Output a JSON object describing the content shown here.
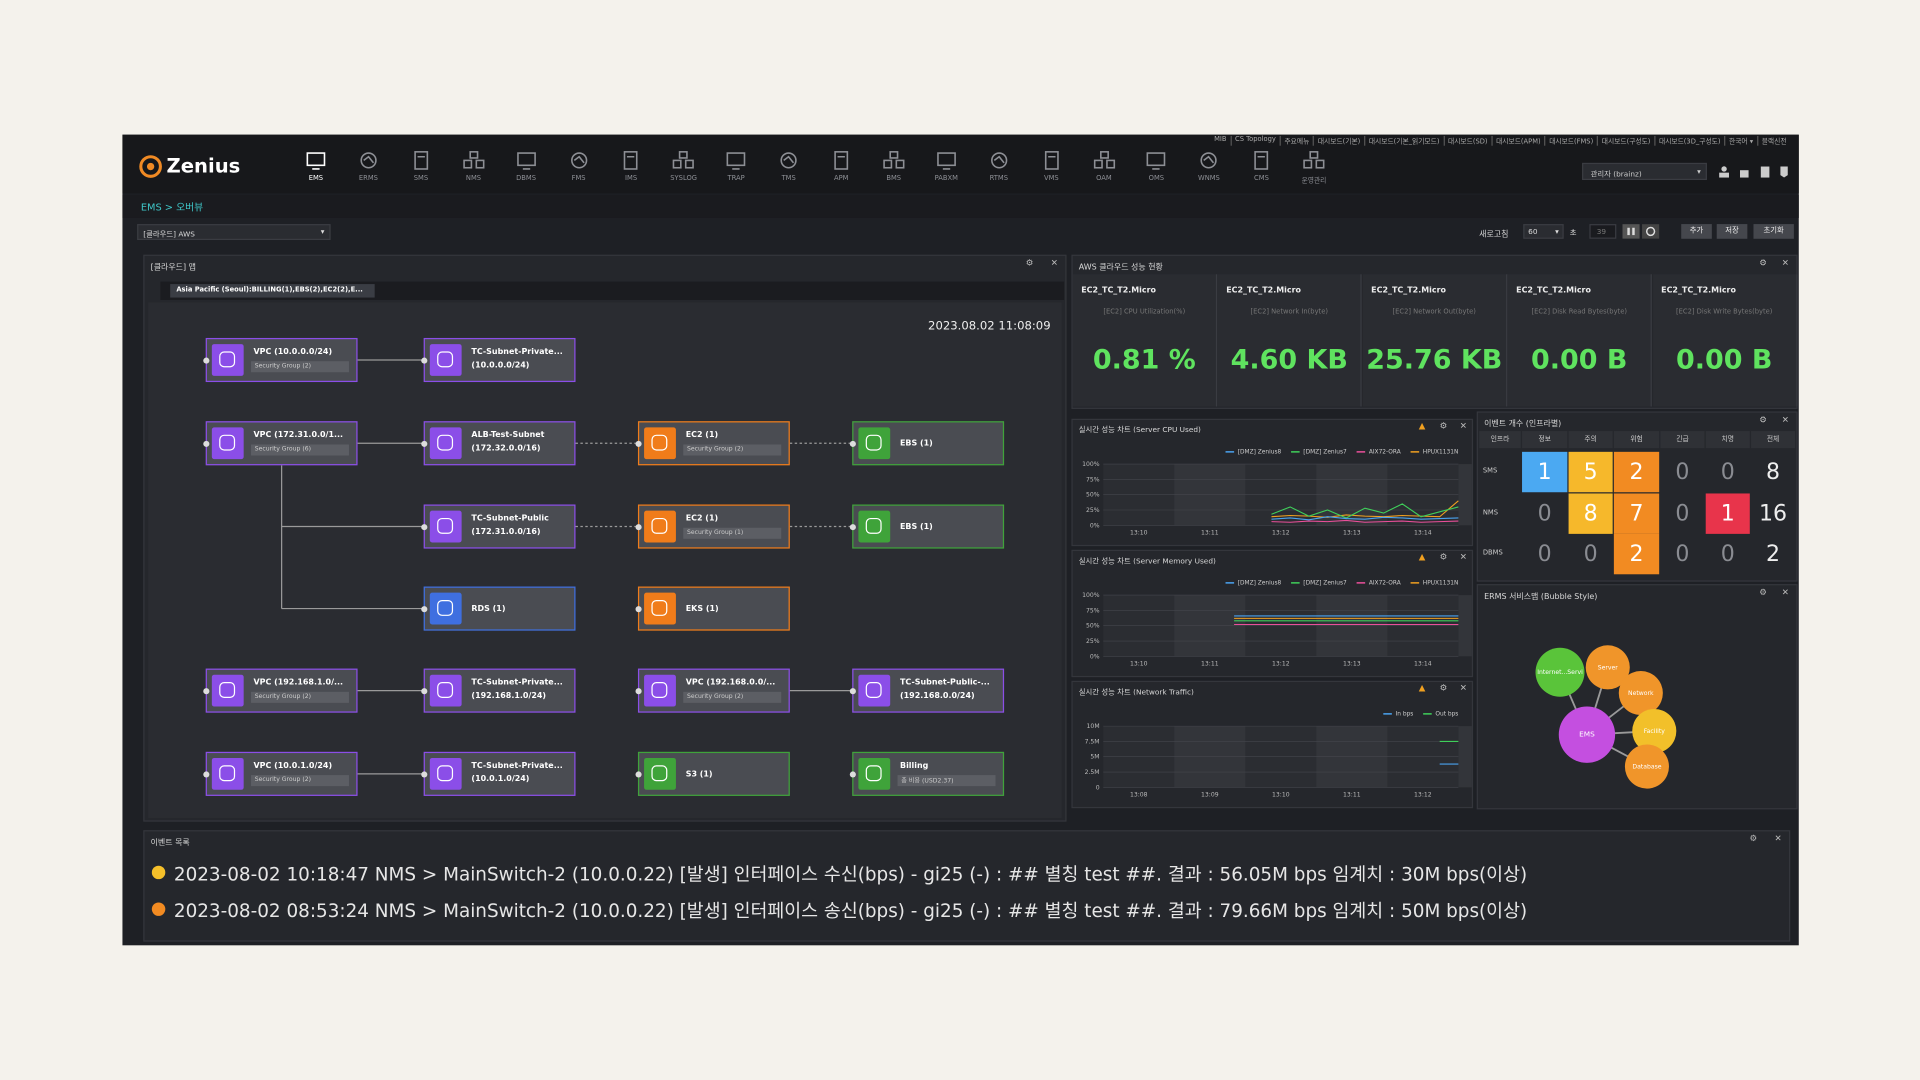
{
  "header": {
    "logo": "Zenius",
    "top_links": [
      "MIB",
      "CS Topology",
      "주요메뉴",
      "대시보드(기본)",
      "대시보드(기본_읽기모드)",
      "대시보드(SD)",
      "대시보드(APM)",
      "대시보드(FMS)",
      "대시보드(구성도)",
      "대시보드(3D_구성도)",
      "한국어 ▾",
      "블랙신전"
    ],
    "nav": [
      "EMS",
      "ERMS",
      "SMS",
      "NMS",
      "DBMS",
      "FMS",
      "IMS",
      "SYSLOG",
      "TRAP",
      "TMS",
      "APM",
      "BMS",
      "PABXM",
      "RTMS",
      "VMS",
      "OAM",
      "OMS",
      "WNMS",
      "CMS",
      "운영관리"
    ],
    "user": "관리자 (brainz)"
  },
  "breadcrumb": "EMS > 오버뷰",
  "toolbar": {
    "group_select": "[클라우드] AWS",
    "refresh_label": "새로고침",
    "interval": "60",
    "unit": "초",
    "countdown": "39",
    "buttons": [
      "추가",
      "저장",
      "초기화"
    ]
  },
  "map": {
    "title": "[클라우드] 맵",
    "region": "Asia Pacific (Seoul):BILLING(1),EBS(2),EC2(2),E...",
    "timestamp": "2023.08.02 11:08:09",
    "nodes": [
      {
        "label": "VPC (10.0.0.0/24)",
        "sub": "Security Group (2)",
        "color": "#8b4ee8"
      },
      {
        "label": "TC-Subnet-Private...",
        "detail": "(10.0.0.0/24)",
        "color": "#8b4ee8"
      },
      {
        "label": "VPC (172.31.0.0/1...",
        "sub": "Security Group (6)",
        "color": "#8b4ee8"
      },
      {
        "label": "ALB-Test-Subnet",
        "detail": "(172.32.0.0/16)",
        "color": "#8b4ee8"
      },
      {
        "label": "EC2 (1)",
        "sub": "Security Group (2)",
        "color": "#f07c1a"
      },
      {
        "label": "EBS (1)",
        "color": "#3fa33a"
      },
      {
        "label": "TC-Subnet-Public",
        "detail": "(172.31.0.0/16)",
        "color": "#8b4ee8"
      },
      {
        "label": "EC2 (1)",
        "sub": "Security Group (1)",
        "color": "#f07c1a"
      },
      {
        "label": "EBS (1)",
        "color": "#3fa33a"
      },
      {
        "label": "RDS (1)",
        "color": "#3f6fe0"
      },
      {
        "label": "EKS (1)",
        "color": "#f07c1a"
      },
      {
        "label": "VPC (192.168.1.0/...",
        "sub": "Security Group (2)",
        "color": "#8b4ee8"
      },
      {
        "label": "TC-Subnet-Private...",
        "detail": "(192.168.1.0/24)",
        "color": "#8b4ee8"
      },
      {
        "label": "VPC (192.168.0.0/...",
        "sub": "Security Group (2)",
        "color": "#8b4ee8"
      },
      {
        "label": "TC-Subnet-Public-...",
        "detail": "(192.168.0.0/24)",
        "color": "#8b4ee8"
      },
      {
        "label": "VPC (10.0.1.0/24)",
        "sub": "Security Group (2)",
        "color": "#8b4ee8"
      },
      {
        "label": "TC-Subnet-Private...",
        "detail": "(10.0.1.0/24)",
        "color": "#8b4ee8"
      },
      {
        "label": "S3 (1)",
        "color": "#3fa33a"
      },
      {
        "label": "Billing",
        "sub": "총 비용 (USD2.37)",
        "color": "#3fa33a"
      }
    ]
  },
  "aws": {
    "title": "AWS 클라우드 성능 현황",
    "cards": [
      {
        "name": "EC2_TC_T2.Micro",
        "metric": "[EC2] CPU Utilization(%)",
        "value": "0.81 %"
      },
      {
        "name": "EC2_TC_T2.Micro",
        "metric": "[EC2] Network In(byte)",
        "value": "4.60 KB"
      },
      {
        "name": "EC2_TC_T2.Micro",
        "metric": "[EC2] Network Out(byte)",
        "value": "25.76 KB"
      },
      {
        "name": "EC2_TC_T2.Micro",
        "metric": "[EC2] Disk Read Bytes(byte)",
        "value": "0.00 B"
      },
      {
        "name": "EC2_TC_T2.Micro",
        "metric": "[EC2] Disk Write Bytes(byte)",
        "value": "0.00 B"
      }
    ]
  },
  "chart_data": [
    {
      "type": "line",
      "title": "실시간 성능 차트 (Server CPU Used)",
      "ylim": [
        0,
        100
      ],
      "yticks": [
        {
          "value": 0,
          "label": "0%"
        },
        {
          "value": 25,
          "label": "25%"
        },
        {
          "value": 50,
          "label": "50%"
        },
        {
          "value": 75,
          "label": "75%"
        },
        {
          "value": 100,
          "label": "100%"
        }
      ],
      "xticks": [
        "13:10",
        "13:11",
        "13:12",
        "13:13",
        "13:14"
      ],
      "series": [
        {
          "name": "[DMZ] Zenius8",
          "color": "#4aa3f0",
          "values": [
            null,
            null,
            null,
            null,
            null,
            null,
            null,
            null,
            null,
            10,
            12,
            9,
            14,
            11,
            10,
            13,
            12,
            10,
            11,
            12
          ]
        },
        {
          "name": "[DMZ] Zenius7",
          "color": "#3fcf5a",
          "values": [
            null,
            null,
            null,
            null,
            null,
            null,
            null,
            null,
            null,
            18,
            30,
            15,
            25,
            12,
            28,
            20,
            35,
            14,
            22,
            30
          ]
        },
        {
          "name": "AIX72-ORA",
          "color": "#ea4f9a",
          "values": [
            null,
            null,
            null,
            null,
            null,
            null,
            null,
            null,
            null,
            6,
            5,
            7,
            6,
            8,
            5,
            6,
            7,
            5,
            6,
            7
          ]
        },
        {
          "name": "HPUX1131N",
          "color": "#f0a020",
          "values": [
            null,
            null,
            null,
            null,
            null,
            null,
            null,
            null,
            null,
            14,
            16,
            15,
            13,
            17,
            15,
            14,
            16,
            15,
            14,
            40
          ]
        }
      ]
    },
    {
      "type": "line",
      "title": "실시간 성능 차트 (Server Memory Used)",
      "ylim": [
        0,
        100
      ],
      "yticks": [
        {
          "value": 0,
          "label": "0%"
        },
        {
          "value": 25,
          "label": "25%"
        },
        {
          "value": 50,
          "label": "50%"
        },
        {
          "value": 75,
          "label": "75%"
        },
        {
          "value": 100,
          "label": "100%"
        }
      ],
      "xticks": [
        "13:10",
        "13:11",
        "13:12",
        "13:13",
        "13:14"
      ],
      "series": [
        {
          "name": "[DMZ] Zenius8",
          "color": "#4aa3f0",
          "values": [
            null,
            null,
            null,
            null,
            null,
            null,
            null,
            66,
            66,
            66,
            66,
            66,
            66,
            66,
            66,
            66,
            66,
            66,
            66,
            66
          ]
        },
        {
          "name": "[DMZ] Zenius7",
          "color": "#3fcf5a",
          "values": [
            null,
            null,
            null,
            null,
            null,
            null,
            null,
            58,
            58,
            58,
            58,
            58,
            58,
            58,
            58,
            58,
            58,
            58,
            58,
            58
          ]
        },
        {
          "name": "AIX72-ORA",
          "color": "#ea4f9a",
          "values": [
            null,
            null,
            null,
            null,
            null,
            null,
            null,
            52,
            52,
            52,
            52,
            52,
            52,
            52,
            52,
            52,
            52,
            52,
            52,
            52
          ]
        },
        {
          "name": "HPUX1131N",
          "color": "#f0a020",
          "values": [
            null,
            null,
            null,
            null,
            null,
            null,
            null,
            62,
            62,
            62,
            62,
            62,
            62,
            62,
            62,
            62,
            62,
            62,
            62,
            62
          ]
        }
      ]
    },
    {
      "type": "line",
      "title": "실시간 성능 차트 (Network Traffic)",
      "ylim": [
        0,
        10000000
      ],
      "yticks": [
        0,
        {
          "value": 2500000,
          "label": "2.5M"
        },
        {
          "value": 5000000,
          "label": "5M"
        },
        {
          "value": 7500000,
          "label": "7.5M"
        },
        {
          "value": 10000000,
          "label": "10M"
        }
      ],
      "xticks": [
        "13:08",
        "13:09",
        "13:10",
        "13:11",
        "13:12"
      ],
      "series": [
        {
          "name": "In bps",
          "color": "#4aa3f0",
          "values": [
            null,
            null,
            null,
            null,
            null,
            null,
            null,
            null,
            null,
            null,
            null,
            null,
            null,
            null,
            null,
            null,
            null,
            null,
            3800000,
            3800000
          ]
        },
        {
          "name": "Out bps",
          "color": "#3fcf5a",
          "values": [
            null,
            null,
            null,
            null,
            null,
            null,
            null,
            null,
            null,
            null,
            null,
            null,
            null,
            null,
            null,
            null,
            null,
            null,
            7500000,
            7500000
          ]
        }
      ]
    }
  ],
  "event_count": {
    "title": "이벤트 개수 (인프라별)",
    "headers": [
      "인프라",
      "정보",
      "주의",
      "위험",
      "긴급",
      "치명",
      "전체"
    ],
    "level_colors": [
      "#4ba9f2",
      "#f6b82b",
      "#f28b22",
      "#8a3fd6",
      "#e8344b"
    ],
    "rows": [
      {
        "infra": "SMS",
        "counts": [
          1,
          5,
          2,
          0,
          0
        ],
        "total": 8
      },
      {
        "infra": "NMS",
        "counts": [
          0,
          8,
          7,
          0,
          1
        ],
        "total": 16
      },
      {
        "infra": "DBMS",
        "counts": [
          0,
          0,
          2,
          0,
          0
        ],
        "total": 2
      }
    ]
  },
  "bubble": {
    "title": "ERMS 서비스맵 (Bubble Style)",
    "center": {
      "label": "EMS",
      "color": "#c44fe0"
    },
    "bubbles": [
      {
        "label": "Internet...Servi",
        "color": "#5ac43a"
      },
      {
        "label": "Server",
        "color": "#f0952a"
      },
      {
        "label": "Network",
        "color": "#f0952a"
      },
      {
        "label": "Facility",
        "color": "#f2c02a"
      },
      {
        "label": "Database",
        "color": "#f0952a"
      }
    ]
  },
  "events": {
    "title": "이벤트 목록",
    "rows": [
      {
        "text": "2023-08-02 10:18:47 NMS > MainSwitch-2 (10.0.0.22) [발생] 인터페이스 수신(bps) - gi25 (-) : ## 별칭 test ##. 결과 : 56.05M bps 임계치 : 30M bps(이상)",
        "color": "#f6c02a"
      },
      {
        "text": "2023-08-02 08:53:24 NMS > MainSwitch-2 (10.0.0.22) [발생] 인터페이스 송신(bps) - gi25 (-) : ## 별칭 test ##. 결과 : 79.66M bps 임계치 : 50M bps(이상)",
        "color": "#f28b22"
      }
    ]
  }
}
